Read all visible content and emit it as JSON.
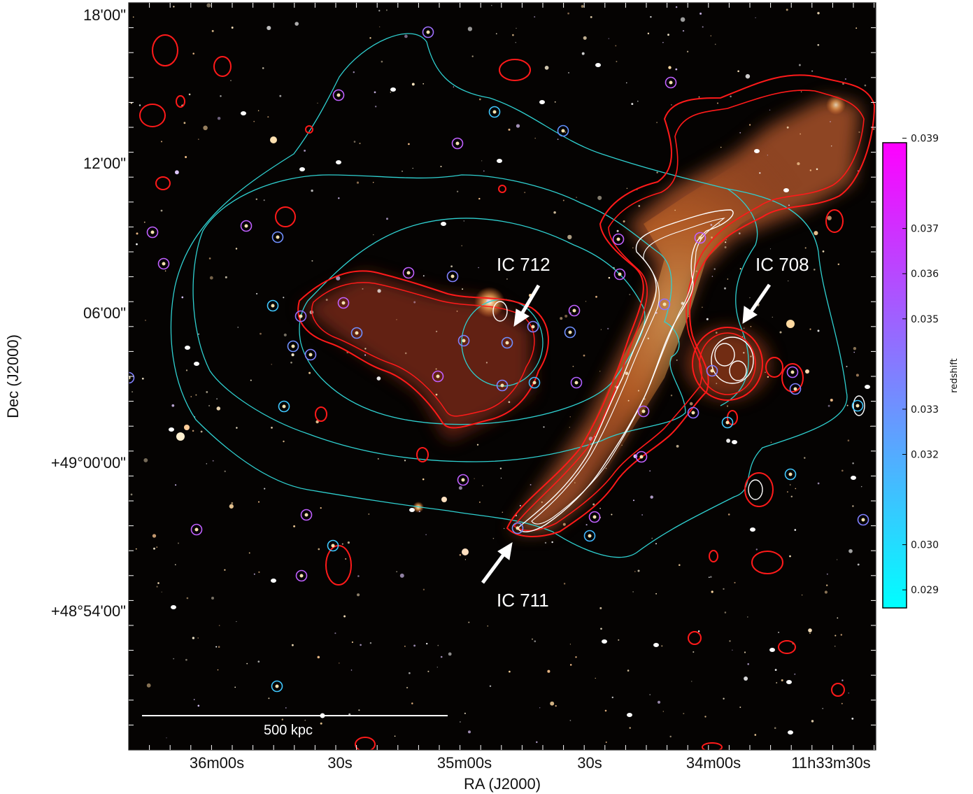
{
  "axes": {
    "xlabel": "RA (J2000)",
    "ylabel": "Dec (J2000)",
    "x_ticks": [
      "36m00s",
      "30s",
      "35m00s",
      "30s",
      "34m00s",
      "11h33m30s"
    ],
    "y_ticks": [
      "18'00\"",
      "12'00\"",
      "06'00\"",
      "+49°00'00\"",
      "+48°54'00\""
    ]
  },
  "annotations": {
    "ic712": "IC 712",
    "ic708": "IC 708",
    "ic711": "IC 711"
  },
  "scale_bar": {
    "label": "500 kpc"
  },
  "colorbar": {
    "label": "redshift",
    "min": 0.0286,
    "max": 0.0389,
    "ticks": [
      "0.039",
      "0.037",
      "0.036",
      "0.035",
      "0.033",
      "0.032",
      "0.030",
      "0.029"
    ],
    "tick_values": [
      0.039,
      0.037,
      0.036,
      0.035,
      0.033,
      0.032,
      0.03,
      0.029
    ],
    "colors": {
      "low": "#00ffff",
      "high": "#ff00ff"
    }
  },
  "colors": {
    "radio_contour": "#ff1a1a",
    "hires_contour": "#ffffff",
    "xray_contour": "#2fd0d0",
    "background": "#050302"
  }
}
